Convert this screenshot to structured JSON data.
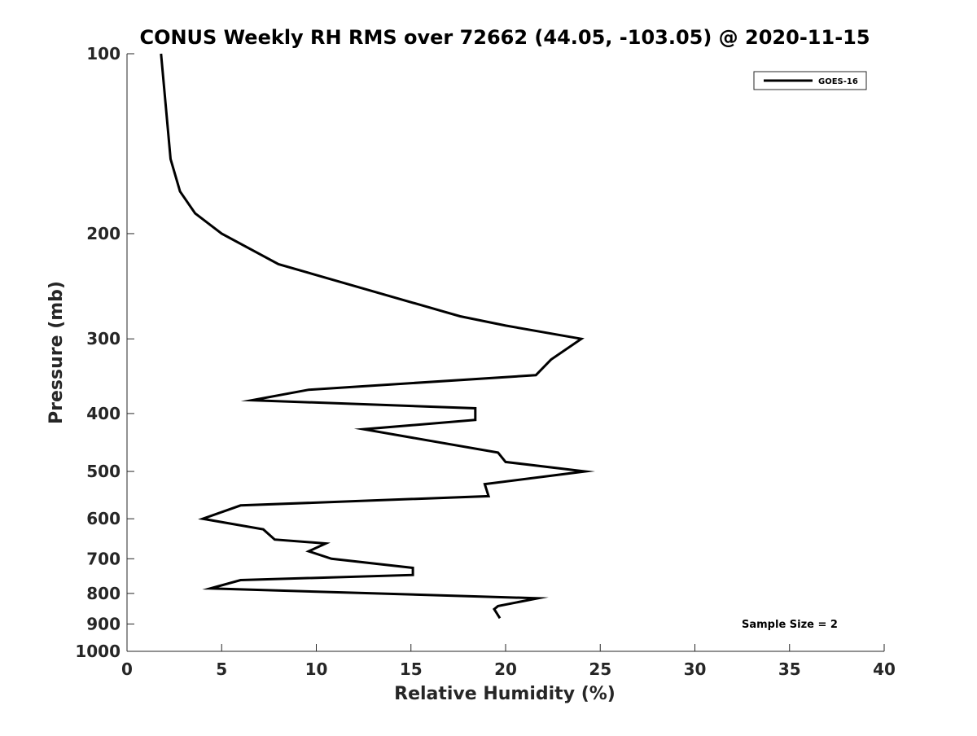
{
  "chart_data": {
    "type": "line",
    "title": "CONUS Weekly RH RMS over 72662 (44.05, -103.05) @ 2020-11-15",
    "xlabel": "Relative Humidity (%)",
    "ylabel": "Pressure (mb)",
    "xlim": [
      0,
      40
    ],
    "ylim": [
      100,
      1000
    ],
    "y_scale": "log",
    "y_reversed": true,
    "grid": false,
    "legend_position": "top-right",
    "x_ticks": [
      "0",
      "5",
      "10",
      "15",
      "20",
      "25",
      "30",
      "35",
      "40"
    ],
    "y_ticks": [
      "100",
      "200",
      "300",
      "400",
      "500",
      "600",
      "700",
      "800",
      "900",
      "1000"
    ],
    "series": [
      {
        "name": "GOES-16",
        "color": "#000000",
        "points": [
          [
            1.8,
            100
          ],
          [
            2.3,
            150
          ],
          [
            2.8,
            170
          ],
          [
            3.6,
            185
          ],
          [
            5.0,
            200
          ],
          [
            8.0,
            225
          ],
          [
            17.6,
            275
          ],
          [
            20.0,
            285
          ],
          [
            24.0,
            300
          ],
          [
            22.4,
            325
          ],
          [
            21.6,
            345
          ],
          [
            9.6,
            365
          ],
          [
            6.6,
            380
          ],
          [
            18.4,
            392
          ],
          [
            18.4,
            410
          ],
          [
            12.5,
            425
          ],
          [
            19.6,
            465
          ],
          [
            20.0,
            482
          ],
          [
            24.2,
            500
          ],
          [
            18.9,
            525
          ],
          [
            19.1,
            550
          ],
          [
            6.0,
            570
          ],
          [
            4.0,
            600
          ],
          [
            7.2,
            625
          ],
          [
            7.8,
            650
          ],
          [
            10.5,
            660
          ],
          [
            9.6,
            680
          ],
          [
            10.8,
            700
          ],
          [
            15.1,
            725
          ],
          [
            15.1,
            745
          ],
          [
            6.0,
            760
          ],
          [
            4.4,
            785
          ],
          [
            21.7,
            815
          ],
          [
            19.6,
            840
          ],
          [
            19.4,
            850
          ],
          [
            19.7,
            880
          ]
        ]
      }
    ],
    "annotations": [
      "Sample Size = 2"
    ]
  }
}
